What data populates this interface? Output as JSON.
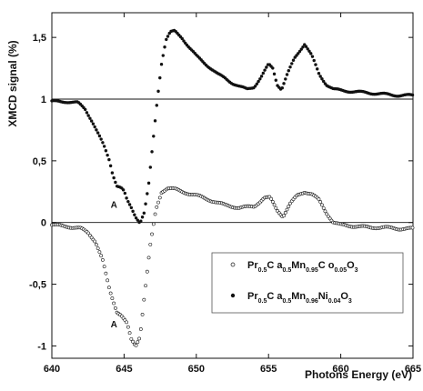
{
  "chart_data": {
    "type": "scatter",
    "xlabel": "Photons Energy (eV)",
    "ylabel": "XMCD signal (%)",
    "xlim": [
      640,
      665
    ],
    "ylim": [
      -1.1,
      1.7
    ],
    "x_ticks": [
      640,
      645,
      650,
      655,
      660,
      665
    ],
    "x_tick_labels": [
      "640",
      "645",
      "650",
      "655",
      "660",
      "665"
    ],
    "y_ticks": [
      -1,
      -0.5,
      0,
      0.5,
      1,
      1.5
    ],
    "y_tick_labels": [
      "-1",
      "-0,5",
      "0",
      "0,5",
      "1",
      "1,5"
    ],
    "baselines": [
      0,
      1
    ],
    "annotations": [
      {
        "text": "A",
        "x": 644.3,
        "y": 0.12
      },
      {
        "text": "A",
        "x": 644.3,
        "y": -0.85
      }
    ],
    "legend": {
      "position": "bottom-right",
      "entries": [
        {
          "marker": "open-circle",
          "parts": [
            [
              "Pr",
              ""
            ],
            [
              "0.5",
              "sub"
            ],
            [
              "C a",
              ""
            ],
            [
              "0.5",
              "sub"
            ],
            [
              "Mn",
              ""
            ],
            [
              "0.95",
              "sub"
            ],
            [
              "C o",
              ""
            ],
            [
              "0.05",
              "sub"
            ],
            [
              "O",
              ""
            ],
            [
              "3",
              "sub"
            ]
          ]
        },
        {
          "marker": "filled-circle",
          "parts": [
            [
              "Pr",
              ""
            ],
            [
              "0.5",
              "sub"
            ],
            [
              "C a",
              ""
            ],
            [
              "0.5",
              "sub"
            ],
            [
              "Mn",
              ""
            ],
            [
              "0.96",
              "sub"
            ],
            [
              "Ni",
              ""
            ],
            [
              "0.04",
              "sub"
            ],
            [
              "O",
              ""
            ],
            [
              "3",
              "sub"
            ]
          ]
        }
      ]
    },
    "series": [
      {
        "marker": "open-circle",
        "points": [
          [
            640,
            -0.02
          ],
          [
            641,
            -0.03
          ],
          [
            642,
            -0.05
          ],
          [
            642.5,
            -0.08
          ],
          [
            643,
            -0.15
          ],
          [
            643.5,
            -0.3
          ],
          [
            644,
            -0.55
          ],
          [
            644.5,
            -0.72
          ],
          [
            644.8,
            -0.75
          ],
          [
            645.2,
            -0.82
          ],
          [
            645.5,
            -0.95
          ],
          [
            645.8,
            -1.0
          ],
          [
            646.1,
            -0.92
          ],
          [
            646.4,
            -0.6
          ],
          [
            646.8,
            -0.2
          ],
          [
            647.2,
            0.1
          ],
          [
            647.6,
            0.25
          ],
          [
            648,
            0.28
          ],
          [
            648.5,
            0.27
          ],
          [
            649,
            0.25
          ],
          [
            650,
            0.22
          ],
          [
            651,
            0.18
          ],
          [
            652,
            0.14
          ],
          [
            653,
            0.12
          ],
          [
            654,
            0.13
          ],
          [
            654.7,
            0.2
          ],
          [
            655.1,
            0.2
          ],
          [
            655.6,
            0.1
          ],
          [
            656,
            0.05
          ],
          [
            656.5,
            0.15
          ],
          [
            657,
            0.22
          ],
          [
            657.5,
            0.25
          ],
          [
            658,
            0.23
          ],
          [
            658.5,
            0.18
          ],
          [
            659,
            0.08
          ],
          [
            659.5,
            0.0
          ],
          [
            660,
            -0.02
          ],
          [
            661,
            -0.03
          ],
          [
            662,
            -0.04
          ],
          [
            663,
            -0.04
          ],
          [
            664,
            -0.05
          ],
          [
            665,
            -0.05
          ]
        ]
      },
      {
        "marker": "filled-circle",
        "points": [
          [
            640,
            0.98
          ],
          [
            641,
            0.98
          ],
          [
            641.8,
            0.97
          ],
          [
            642.3,
            0.92
          ],
          [
            642.8,
            0.82
          ],
          [
            643.2,
            0.72
          ],
          [
            643.6,
            0.62
          ],
          [
            644,
            0.5
          ],
          [
            644.2,
            0.4
          ],
          [
            644.5,
            0.3
          ],
          [
            644.8,
            0.28
          ],
          [
            645,
            0.25
          ],
          [
            645.2,
            0.18
          ],
          [
            645.5,
            0.12
          ],
          [
            645.8,
            0.05
          ],
          [
            646.1,
            0.0
          ],
          [
            646.4,
            0.08
          ],
          [
            646.7,
            0.3
          ],
          [
            647.0,
            0.65
          ],
          [
            647.3,
            1.0
          ],
          [
            647.6,
            1.3
          ],
          [
            647.9,
            1.48
          ],
          [
            648.2,
            1.54
          ],
          [
            648.5,
            1.55
          ],
          [
            649,
            1.5
          ],
          [
            649.5,
            1.42
          ],
          [
            650,
            1.35
          ],
          [
            650.5,
            1.3
          ],
          [
            651,
            1.25
          ],
          [
            651.5,
            1.2
          ],
          [
            652,
            1.17
          ],
          [
            652.5,
            1.13
          ],
          [
            653,
            1.1
          ],
          [
            653.5,
            1.08
          ],
          [
            654,
            1.1
          ],
          [
            654.5,
            1.18
          ],
          [
            655,
            1.28
          ],
          [
            655.3,
            1.25
          ],
          [
            655.6,
            1.12
          ],
          [
            655.9,
            1.08
          ],
          [
            656.3,
            1.2
          ],
          [
            656.8,
            1.33
          ],
          [
            657.2,
            1.4
          ],
          [
            657.5,
            1.45
          ],
          [
            658,
            1.35
          ],
          [
            658.5,
            1.2
          ],
          [
            659,
            1.12
          ],
          [
            659.5,
            1.08
          ],
          [
            660,
            1.07
          ],
          [
            661,
            1.06
          ],
          [
            662,
            1.05
          ],
          [
            663,
            1.04
          ],
          [
            664,
            1.03
          ],
          [
            665,
            1.03
          ]
        ]
      }
    ]
  }
}
